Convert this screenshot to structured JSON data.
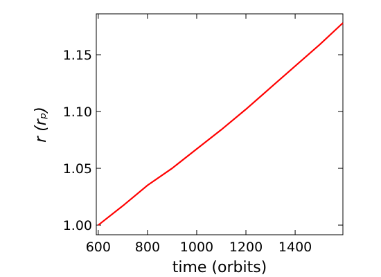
{
  "chart_data": {
    "type": "line",
    "xlabel": "time (orbits)",
    "ylabel": "r (rₚ)",
    "x": [
      600,
      700,
      800,
      900,
      1000,
      1100,
      1200,
      1300,
      1400,
      1500,
      1594
    ],
    "series": [
      {
        "color": "#ff0000",
        "values": [
          1.0,
          1.017,
          1.035,
          1.05,
          1.067,
          1.084,
          1.102,
          1.121,
          1.14,
          1.159,
          1.178
        ]
      }
    ],
    "xlim": [
      592,
      1594
    ],
    "ylim": [
      0.9915,
      1.186
    ],
    "xticks": [
      600,
      800,
      1000,
      1200,
      1400
    ],
    "yticks": [
      {
        "value": 1.0,
        "label": "1.00"
      },
      {
        "value": 1.05,
        "label": "1.05"
      },
      {
        "value": 1.1,
        "label": "1.10"
      },
      {
        "value": 1.15,
        "label": "1.15"
      }
    ]
  }
}
